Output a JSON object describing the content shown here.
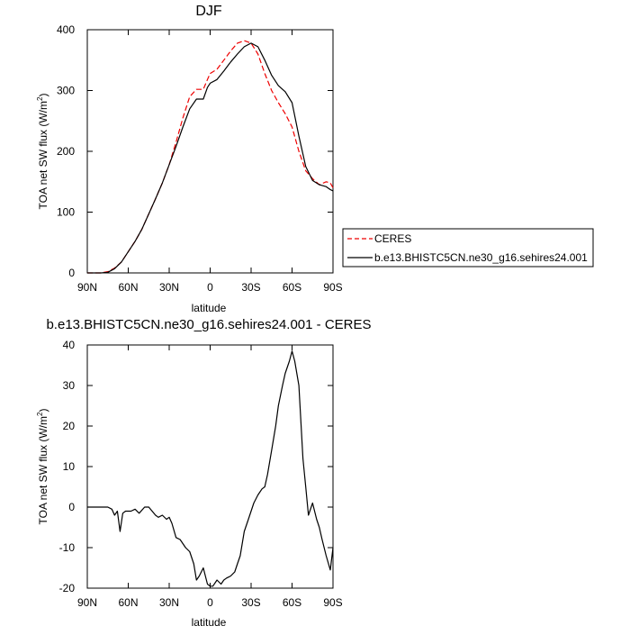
{
  "chart_data": [
    {
      "type": "line",
      "title": "DJF",
      "xlabel": "latitude",
      "ylabel_main": "TOA net SW flux (W/m",
      "ylabel_sup": "2",
      "ylabel_close": ")",
      "xlim": [
        90,
        -90
      ],
      "ylim": [
        0,
        400
      ],
      "x_ticks": [
        90,
        60,
        30,
        0,
        -30,
        -60,
        -90
      ],
      "x_tick_labels": [
        "90N",
        "60N",
        "30N",
        "0",
        "30S",
        "60S",
        "90S"
      ],
      "y_ticks": [
        0,
        100,
        200,
        300,
        400
      ],
      "y_tick_labels": [
        "0",
        "100",
        "200",
        "300",
        "400"
      ],
      "grid": false,
      "legend_position": "right",
      "series": [
        {
          "name": "CERES",
          "color": "#ee0000",
          "dash": "dashed",
          "x": [
            90,
            80,
            75,
            70,
            65,
            60,
            55,
            50,
            45,
            40,
            35,
            30,
            25,
            20,
            15,
            10,
            5,
            2,
            0,
            -5,
            -10,
            -15,
            -20,
            -25,
            -30,
            -35,
            -40,
            -45,
            -50,
            -55,
            -60,
            -65,
            -70,
            -75,
            -80,
            -85,
            -88,
            -90
          ],
          "y": [
            0,
            0,
            2,
            8,
            18,
            35,
            52,
            72,
            97,
            122,
            148,
            178,
            215,
            255,
            290,
            302,
            302,
            318,
            328,
            335,
            350,
            365,
            378,
            382,
            378,
            360,
            328,
            300,
            280,
            262,
            240,
            200,
            168,
            155,
            145,
            150,
            148,
            140
          ]
        },
        {
          "name": "b.e13.BHISTC5CN.ne30_g16.sehires24.001",
          "color": "#000000",
          "dash": "solid",
          "x": [
            90,
            80,
            75,
            70,
            65,
            60,
            55,
            50,
            45,
            40,
            35,
            30,
            25,
            20,
            15,
            10,
            5,
            2,
            0,
            -5,
            -10,
            -15,
            -20,
            -25,
            -30,
            -35,
            -40,
            -45,
            -50,
            -55,
            -60,
            -65,
            -70,
            -75,
            -80,
            -85,
            -88,
            -90
          ],
          "y": [
            0,
            0,
            1,
            7,
            18,
            35,
            52,
            72,
            97,
            122,
            148,
            178,
            208,
            240,
            270,
            286,
            286,
            305,
            312,
            318,
            332,
            347,
            360,
            372,
            378,
            372,
            350,
            325,
            308,
            298,
            280,
            225,
            175,
            152,
            145,
            142,
            137,
            135
          ]
        }
      ]
    },
    {
      "type": "line",
      "title": "b.e13.BHISTC5CN.ne30_g16.sehires24.001 - CERES",
      "xlabel": "latitude",
      "ylabel_main": "TOA net SW flux (W/m",
      "ylabel_sup": "2",
      "ylabel_close": ")",
      "xlim": [
        90,
        -90
      ],
      "ylim": [
        -20,
        40
      ],
      "x_ticks": [
        90,
        60,
        30,
        0,
        -30,
        -60,
        -90
      ],
      "x_tick_labels": [
        "90N",
        "60N",
        "30N",
        "0",
        "30S",
        "60S",
        "90S"
      ],
      "y_ticks": [
        -20,
        -10,
        0,
        10,
        20,
        30,
        40
      ],
      "y_tick_labels": [
        "-20",
        "-10",
        "0",
        "10",
        "20",
        "30",
        "40"
      ],
      "grid": false,
      "series": [
        {
          "color": "#000000",
          "dash": "solid",
          "x": [
            90,
            80,
            75,
            72,
            70,
            68,
            66,
            64,
            62,
            58,
            55,
            52,
            48,
            45,
            40,
            38,
            35,
            32,
            30,
            28,
            25,
            22,
            18,
            15,
            12,
            10,
            8,
            5,
            2,
            0,
            -2,
            -5,
            -8,
            -10,
            -12,
            -15,
            -18,
            -20,
            -22,
            -25,
            -28,
            -30,
            -32,
            -35,
            -38,
            -40,
            -42,
            -45,
            -48,
            -50,
            -53,
            -55,
            -58,
            -60,
            -62,
            -65,
            -68,
            -70,
            -72,
            -75,
            -78,
            -80,
            -82,
            -85,
            -88,
            -90
          ],
          "y": [
            0,
            0,
            0,
            -0.5,
            -2,
            -1,
            -6,
            -1.5,
            -1,
            -1,
            -0.5,
            -1.5,
            0,
            0,
            -2,
            -2.5,
            -2,
            -3,
            -2.5,
            -4,
            -7.5,
            -8,
            -10,
            -11,
            -14,
            -18,
            -17,
            -15,
            -19,
            -19.5,
            -19.5,
            -18,
            -19,
            -18,
            -17.5,
            -17,
            -16,
            -14,
            -12,
            -6,
            -3,
            -1,
            1,
            3,
            4.5,
            5,
            8,
            14,
            20,
            25,
            30,
            33,
            36,
            38.5,
            36,
            30,
            12,
            5,
            -2,
            1,
            -3,
            -5,
            -8,
            -12,
            -15.5,
            -10
          ]
        }
      ]
    }
  ]
}
